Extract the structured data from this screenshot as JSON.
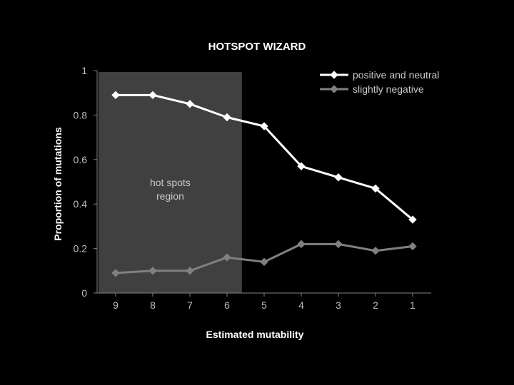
{
  "chart_data": {
    "type": "line",
    "title": "HOTSPOT WIZARD",
    "xlabel": "Estimated mutability",
    "ylabel": "Proportion of mutations",
    "categories": [
      "9",
      "8",
      "7",
      "6",
      "5",
      "4",
      "3",
      "2",
      "1"
    ],
    "ylim": [
      0,
      1
    ],
    "yticks": [
      "0",
      "0.2",
      "0.4",
      "0.6",
      "0.8",
      "1"
    ],
    "series": [
      {
        "name": "positive and neutral",
        "color": "#ffffff",
        "values": [
          0.89,
          0.89,
          0.85,
          0.79,
          0.75,
          0.57,
          0.52,
          0.47,
          0.33
        ]
      },
      {
        "name": "slightly negative",
        "color": "#808080",
        "values": [
          0.09,
          0.1,
          0.1,
          0.16,
          0.14,
          0.22,
          0.22,
          0.19,
          0.21
        ]
      }
    ],
    "annotation": {
      "lines": [
        "hot spots",
        "region"
      ],
      "shaded_categories": [
        "9",
        "8",
        "7",
        "6"
      ]
    },
    "legend_position": "top-right",
    "grid": false
  }
}
